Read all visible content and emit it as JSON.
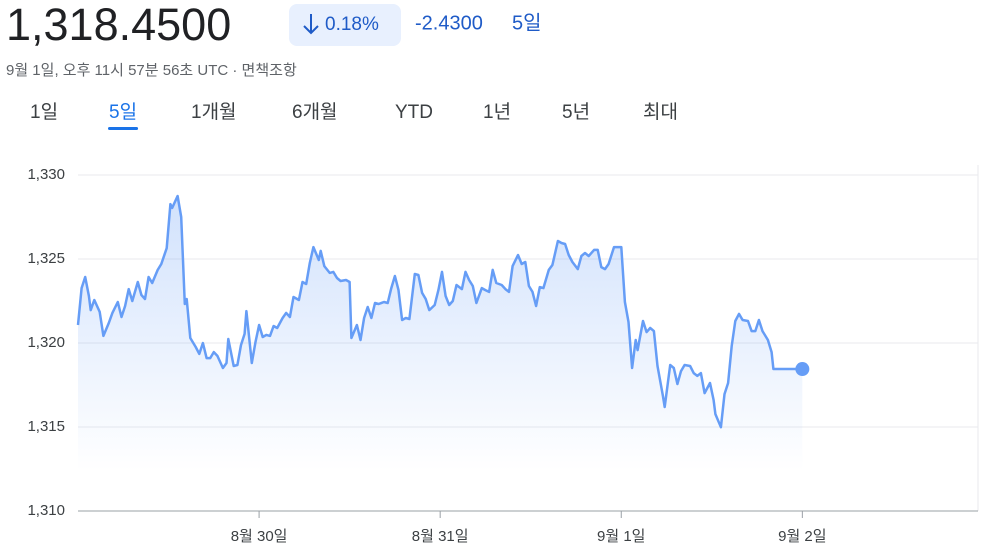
{
  "header": {
    "price": "1,318.4500",
    "change_percent": "0.18%",
    "change": "-2.4300",
    "period": "5일",
    "timestamp": "9월 1일, 오후 11시 57분 56초 UTC · 면책조항"
  },
  "tabs": [
    "1일",
    "5일",
    "1개월",
    "6개월",
    "YTD",
    "1년",
    "5년",
    "최대"
  ],
  "selected_tab": 1,
  "chart_data": {
    "type": "line",
    "color": "#669df6",
    "grid": true,
    "x": [
      0.0,
      0.02,
      0.04,
      0.06,
      0.07,
      0.09,
      0.12,
      0.14,
      0.17,
      0.19,
      0.22,
      0.24,
      0.26,
      0.28,
      0.3,
      0.33,
      0.35,
      0.37,
      0.39,
      0.41,
      0.44,
      0.46,
      0.49,
      0.51,
      0.52,
      0.55,
      0.57,
      0.59,
      0.6,
      0.62,
      0.65,
      0.67,
      0.69,
      0.71,
      0.73,
      0.75,
      0.77,
      0.8,
      0.82,
      0.83,
      0.86,
      0.88,
      0.9,
      0.92,
      0.93,
      0.96,
      0.98,
      1.0,
      1.02,
      1.04,
      1.06,
      1.08,
      1.1,
      1.13,
      1.15,
      1.17,
      1.19,
      1.22,
      1.24,
      1.26,
      1.28,
      1.3,
      1.33,
      1.34,
      1.36,
      1.39,
      1.41,
      1.43,
      1.45,
      1.48,
      1.5,
      1.51,
      1.54,
      1.56,
      1.58,
      1.6,
      1.62,
      1.64,
      1.66,
      1.69,
      1.71,
      1.73,
      1.75,
      1.77,
      1.79,
      1.81,
      1.83,
      1.86,
      1.88,
      1.9,
      1.92,
      1.94,
      1.97,
      1.99,
      2.01,
      2.03,
      2.05,
      2.07,
      2.09,
      2.12,
      2.14,
      2.16,
      2.18,
      2.2,
      2.23,
      2.25,
      2.27,
      2.29,
      2.31,
      2.34,
      2.36,
      2.38,
      2.4,
      2.43,
      2.45,
      2.47,
      2.49,
      2.51,
      2.53,
      2.55,
      2.57,
      2.6,
      2.62,
      2.65,
      2.67,
      2.69,
      2.71,
      2.73,
      2.76,
      2.78,
      2.8,
      2.82,
      2.85,
      2.87,
      2.89,
      2.91,
      2.93,
      2.96,
      2.98,
      3.0,
      3.02,
      3.04,
      3.06,
      3.08,
      3.09,
      3.12,
      3.14,
      3.16,
      3.18,
      3.2,
      3.23,
      3.24,
      3.27,
      3.29,
      3.31,
      3.33,
      3.35,
      3.38,
      3.4,
      3.42,
      3.44,
      3.46,
      3.49,
      3.51,
      3.52,
      3.55,
      3.57,
      3.59,
      3.61,
      3.63,
      3.65,
      3.67,
      3.7,
      3.72,
      3.74,
      3.76,
      3.78,
      3.81,
      3.83,
      3.84,
      4.0
    ],
    "values": [
      1321.07,
      1323.27,
      1323.93,
      1322.8,
      1321.96,
      1322.56,
      1321.85,
      1320.42,
      1321.19,
      1321.79,
      1322.44,
      1321.55,
      1322.2,
      1323.21,
      1322.5,
      1323.63,
      1322.86,
      1322.62,
      1323.93,
      1323.57,
      1324.35,
      1324.7,
      1325.65,
      1328.27,
      1328.04,
      1328.75,
      1327.5,
      1322.32,
      1322.62,
      1320.3,
      1319.76,
      1319.35,
      1320,
      1319.1,
      1319.1,
      1319.46,
      1319.23,
      1318.51,
      1318.81,
      1320.24,
      1318.63,
      1318.69,
      1319.88,
      1320.54,
      1321.9,
      1318.81,
      1320.06,
      1321.07,
      1320.36,
      1320.48,
      1320.42,
      1321.01,
      1320.89,
      1321.49,
      1321.79,
      1321.55,
      1322.74,
      1322.56,
      1323.63,
      1323.51,
      1324.76,
      1325.71,
      1324.94,
      1325.48,
      1324.58,
      1324.17,
      1324.23,
      1323.87,
      1323.69,
      1323.75,
      1323.63,
      1320.3,
      1321.07,
      1320.18,
      1321.49,
      1322.14,
      1321.49,
      1322.38,
      1322.32,
      1322.44,
      1322.38,
      1323.27,
      1323.99,
      1323.15,
      1321.37,
      1321.49,
      1321.43,
      1324.11,
      1324.05,
      1322.98,
      1322.62,
      1321.96,
      1322.26,
      1323.15,
      1324.23,
      1322.8,
      1322.26,
      1322.5,
      1323.45,
      1323.21,
      1324.23,
      1323.75,
      1323.39,
      1322.38,
      1323.27,
      1323.15,
      1323.04,
      1324.35,
      1323.57,
      1323.45,
      1323.21,
      1323.04,
      1324.58,
      1325.24,
      1324.7,
      1324.82,
      1323.39,
      1323.04,
      1322.2,
      1323.33,
      1323.27,
      1324.35,
      1324.64,
      1326.07,
      1325.95,
      1325.89,
      1325.24,
      1324.82,
      1324.4,
      1325.18,
      1325.36,
      1325.18,
      1325.54,
      1325.54,
      1324.52,
      1324.4,
      1324.7,
      1325.71,
      1325.71,
      1325.71,
      1322.44,
      1321.25,
      1318.51,
      1320.18,
      1319.58,
      1321.31,
      1320.65,
      1320.89,
      1320.71,
      1318.63,
      1316.85,
      1316.19,
      1318.69,
      1318.51,
      1317.56,
      1318.33,
      1318.69,
      1318.63,
      1318.21,
      1318.04,
      1318.21,
      1317.02,
      1317.62,
      1316.61,
      1315.77,
      1314.99,
      1316.96,
      1317.62,
      1319.82,
      1321.31,
      1321.73,
      1321.37,
      1321.31,
      1320.71,
      1320.71,
      1321.37,
      1320.71,
      1320.18,
      1319.46,
      1318.45,
      1318.45
    ],
    "xlim": [
      0,
      4.97
    ],
    "xticks": [
      {
        "value": 1,
        "label": "8월 30일"
      },
      {
        "value": 2,
        "label": "8월 31일"
      },
      {
        "value": 3,
        "label": "9월 1일"
      },
      {
        "value": 4,
        "label": "9월 2일"
      }
    ],
    "ylim": [
      1310,
      1330
    ],
    "yticks": [
      {
        "value": 1310,
        "label": "1,310"
      },
      {
        "value": 1315,
        "label": "1,315"
      },
      {
        "value": 1320,
        "label": "1,320"
      },
      {
        "value": 1325,
        "label": "1,325"
      },
      {
        "value": 1330,
        "label": "1,330"
      }
    ]
  }
}
